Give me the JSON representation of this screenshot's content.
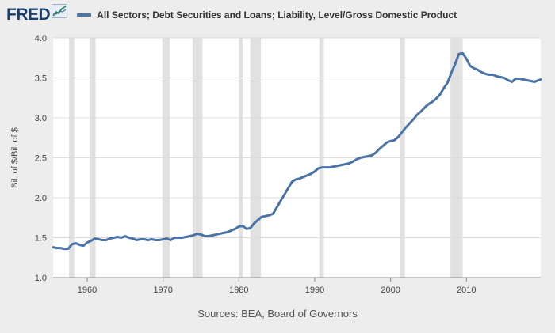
{
  "header": {
    "logo_text": "FRED",
    "logo_icon": "chart-line-icon",
    "legend_label": "All Sectors; Debt Securities and Loans; Liability, Level/Gross Domestic Product"
  },
  "source_text": "Sources: BEA, Board of Governors",
  "colors": {
    "line": "#4b73a6",
    "recession": "#e1e1e1",
    "grid": "#dcdcdc",
    "page_bg": "#ededed",
    "plot_bg": "#ffffff"
  },
  "chart_data": {
    "type": "line",
    "title": "",
    "xlabel": "",
    "ylabel": "Bil. of $/Bil. of $",
    "xlim": [
      1955.5,
      2019.8
    ],
    "ylim": [
      1.0,
      4.0
    ],
    "x_ticks": [
      1960,
      1970,
      1980,
      1990,
      2000,
      2010
    ],
    "x_tick_labels": [
      "1960",
      "1970",
      "1980",
      "1990",
      "2000",
      "2010"
    ],
    "y_ticks": [
      1.0,
      1.5,
      2.0,
      2.5,
      3.0,
      3.5,
      4.0
    ],
    "y_tick_labels": [
      "1.0",
      "1.5",
      "2.0",
      "2.5",
      "3.0",
      "3.5",
      "4.0"
    ],
    "grid": "horizontal",
    "recessions": [
      [
        1957.6,
        1958.3
      ],
      [
        1960.3,
        1961.1
      ],
      [
        1969.9,
        1970.9
      ],
      [
        1973.9,
        1975.2
      ],
      [
        1980.0,
        1980.5
      ],
      [
        1981.5,
        1982.9
      ],
      [
        1990.6,
        1991.2
      ],
      [
        2001.2,
        2001.9
      ],
      [
        2007.9,
        2009.5
      ]
    ],
    "series": [
      {
        "values": [
          [
            1955.5,
            1.38
          ],
          [
            1956.0,
            1.37
          ],
          [
            1956.5,
            1.37
          ],
          [
            1957.0,
            1.36
          ],
          [
            1957.5,
            1.36
          ],
          [
            1958.0,
            1.42
          ],
          [
            1958.5,
            1.43
          ],
          [
            1959.0,
            1.41
          ],
          [
            1959.5,
            1.4
          ],
          [
            1960.0,
            1.44
          ],
          [
            1960.5,
            1.46
          ],
          [
            1961.0,
            1.49
          ],
          [
            1961.5,
            1.48
          ],
          [
            1962.0,
            1.47
          ],
          [
            1962.5,
            1.47
          ],
          [
            1963.0,
            1.49
          ],
          [
            1963.5,
            1.5
          ],
          [
            1964.0,
            1.51
          ],
          [
            1964.5,
            1.5
          ],
          [
            1965.0,
            1.52
          ],
          [
            1965.5,
            1.5
          ],
          [
            1966.0,
            1.49
          ],
          [
            1966.5,
            1.47
          ],
          [
            1967.0,
            1.48
          ],
          [
            1967.5,
            1.48
          ],
          [
            1968.0,
            1.47
          ],
          [
            1968.5,
            1.48
          ],
          [
            1969.0,
            1.47
          ],
          [
            1969.5,
            1.47
          ],
          [
            1970.0,
            1.48
          ],
          [
            1970.5,
            1.49
          ],
          [
            1971.0,
            1.47
          ],
          [
            1971.5,
            1.5
          ],
          [
            1972.0,
            1.5
          ],
          [
            1972.5,
            1.5
          ],
          [
            1973.0,
            1.51
          ],
          [
            1973.5,
            1.52
          ],
          [
            1974.0,
            1.53
          ],
          [
            1974.5,
            1.55
          ],
          [
            1975.0,
            1.54
          ],
          [
            1975.5,
            1.52
          ],
          [
            1976.0,
            1.52
          ],
          [
            1976.5,
            1.53
          ],
          [
            1977.0,
            1.54
          ],
          [
            1977.5,
            1.55
          ],
          [
            1978.0,
            1.56
          ],
          [
            1978.5,
            1.57
          ],
          [
            1979.0,
            1.59
          ],
          [
            1979.5,
            1.61
          ],
          [
            1980.0,
            1.64
          ],
          [
            1980.5,
            1.65
          ],
          [
            1981.0,
            1.61
          ],
          [
            1981.5,
            1.62
          ],
          [
            1982.0,
            1.68
          ],
          [
            1982.5,
            1.72
          ],
          [
            1983.0,
            1.76
          ],
          [
            1983.5,
            1.77
          ],
          [
            1984.0,
            1.78
          ],
          [
            1984.5,
            1.8
          ],
          [
            1985.0,
            1.88
          ],
          [
            1985.5,
            1.96
          ],
          [
            1986.0,
            2.04
          ],
          [
            1986.5,
            2.12
          ],
          [
            1987.0,
            2.2
          ],
          [
            1987.5,
            2.23
          ],
          [
            1988.0,
            2.24
          ],
          [
            1988.5,
            2.26
          ],
          [
            1989.0,
            2.28
          ],
          [
            1989.5,
            2.3
          ],
          [
            1990.0,
            2.33
          ],
          [
            1990.5,
            2.37
          ],
          [
            1991.0,
            2.38
          ],
          [
            1991.5,
            2.38
          ],
          [
            1992.0,
            2.38
          ],
          [
            1992.5,
            2.39
          ],
          [
            1993.0,
            2.4
          ],
          [
            1993.5,
            2.41
          ],
          [
            1994.0,
            2.42
          ],
          [
            1994.5,
            2.43
          ],
          [
            1995.0,
            2.45
          ],
          [
            1995.5,
            2.48
          ],
          [
            1996.0,
            2.5
          ],
          [
            1996.5,
            2.51
          ],
          [
            1997.0,
            2.52
          ],
          [
            1997.5,
            2.53
          ],
          [
            1998.0,
            2.56
          ],
          [
            1998.5,
            2.61
          ],
          [
            1999.0,
            2.65
          ],
          [
            1999.5,
            2.69
          ],
          [
            2000.0,
            2.71
          ],
          [
            2000.5,
            2.72
          ],
          [
            2001.0,
            2.76
          ],
          [
            2001.5,
            2.82
          ],
          [
            2002.0,
            2.88
          ],
          [
            2002.5,
            2.93
          ],
          [
            2003.0,
            2.98
          ],
          [
            2003.5,
            3.04
          ],
          [
            2004.0,
            3.08
          ],
          [
            2004.5,
            3.13
          ],
          [
            2005.0,
            3.17
          ],
          [
            2005.5,
            3.2
          ],
          [
            2006.0,
            3.24
          ],
          [
            2006.5,
            3.29
          ],
          [
            2007.0,
            3.37
          ],
          [
            2007.5,
            3.44
          ],
          [
            2008.0,
            3.56
          ],
          [
            2008.5,
            3.67
          ],
          [
            2009.0,
            3.8
          ],
          [
            2009.5,
            3.81
          ],
          [
            2010.0,
            3.74
          ],
          [
            2010.5,
            3.65
          ],
          [
            2011.0,
            3.62
          ],
          [
            2011.5,
            3.6
          ],
          [
            2012.0,
            3.57
          ],
          [
            2012.5,
            3.55
          ],
          [
            2013.0,
            3.54
          ],
          [
            2013.5,
            3.54
          ],
          [
            2014.0,
            3.52
          ],
          [
            2014.5,
            3.51
          ],
          [
            2015.0,
            3.5
          ],
          [
            2015.5,
            3.47
          ],
          [
            2016.0,
            3.45
          ],
          [
            2016.5,
            3.49
          ],
          [
            2017.0,
            3.49
          ],
          [
            2017.5,
            3.48
          ],
          [
            2018.0,
            3.47
          ],
          [
            2018.5,
            3.46
          ],
          [
            2019.0,
            3.45
          ],
          [
            2019.5,
            3.47
          ],
          [
            2019.8,
            3.48
          ]
        ]
      }
    ]
  }
}
